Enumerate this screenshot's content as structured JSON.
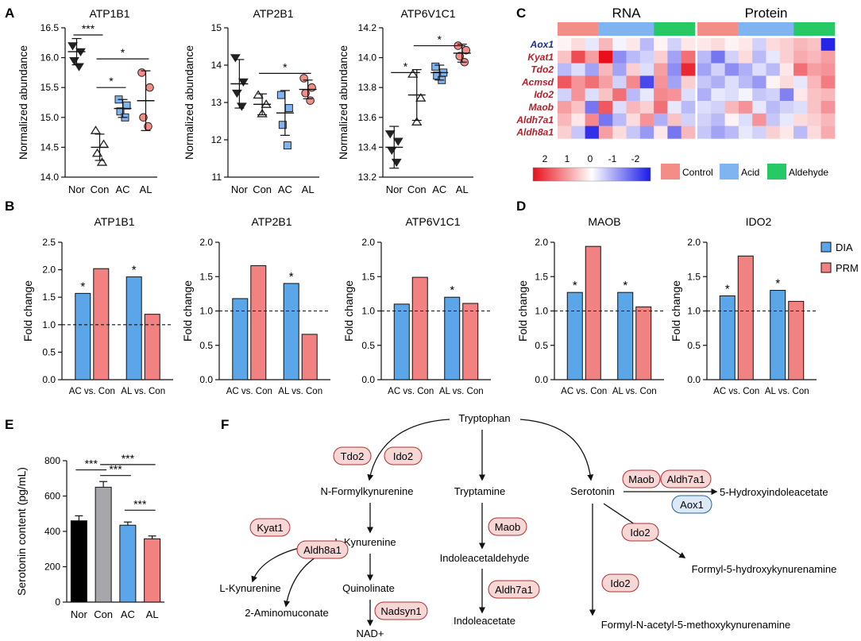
{
  "panel_letters": [
    "A",
    "B",
    "C",
    "D",
    "E",
    "F"
  ],
  "colors": {
    "control": "#f28e86",
    "acid": "#7fb4f0",
    "aldehyde": "#27c964",
    "dia": "#5aa6e8",
    "prm": "#f28181",
    "nor_bar": "#000000",
    "con_bar": "#a6a6ab",
    "enzyme_fill": "#f7d6d6",
    "enzyme_stroke": "#b03030",
    "aox_fill": "#dce9f7",
    "aox_stroke": "#2b5fa0",
    "heat_high": "#e8101a",
    "heat_low": "#1a1ae8"
  },
  "chart_data": [
    {
      "id": "A1",
      "type": "scatter",
      "title": "ATP1B1",
      "ylabel": "Normalized abundance",
      "ylim": [
        14.0,
        16.5
      ],
      "yticks": [
        "14.0",
        "14.5",
        "15.0",
        "15.5",
        "16.0",
        "16.5"
      ],
      "categories": [
        "Nor",
        "Con",
        "AC",
        "AL"
      ],
      "groups": [
        {
          "name": "Nor",
          "marker": "tri-down",
          "points": [
            16.2,
            16.1,
            15.95,
            15.85
          ],
          "mean": 16.1,
          "sd": 0.22
        },
        {
          "name": "Con",
          "marker": "tri-up",
          "points": [
            14.78,
            14.55,
            14.4,
            14.25
          ],
          "mean": 14.5,
          "sd": 0.22
        },
        {
          "name": "AC",
          "marker": "square",
          "points": [
            15.3,
            15.2,
            15.1,
            15.0
          ],
          "mean": 15.15,
          "sd": 0.15
        },
        {
          "name": "AL",
          "marker": "circle",
          "points": [
            15.75,
            15.5,
            15.0,
            14.85
          ],
          "mean": 15.28,
          "sd": 0.5
        }
      ],
      "significance": [
        {
          "from": 0,
          "to": 1,
          "y": 16.38,
          "label": "***"
        },
        {
          "from": 1,
          "to": 2,
          "y": 15.5,
          "label": "*"
        },
        {
          "from": 1,
          "to": 3,
          "y": 15.98,
          "label": "*"
        }
      ]
    },
    {
      "id": "A2",
      "type": "scatter",
      "title": "ATP2B1",
      "ylabel": "Normalized abundance",
      "ylim": [
        11,
        15
      ],
      "yticks": [
        "11",
        "12",
        "13",
        "14",
        "15"
      ],
      "categories": [
        "Nor",
        "Con",
        "AC",
        "AL"
      ],
      "groups": [
        {
          "name": "Nor",
          "marker": "tri-down",
          "points": [
            14.2,
            13.55,
            13.25,
            12.9
          ],
          "mean": 13.5,
          "sd": 0.65
        },
        {
          "name": "Con",
          "marker": "tri-up",
          "points": [
            13.2,
            12.95,
            12.7
          ],
          "mean": 12.95,
          "sd": 0.28
        },
        {
          "name": "AC",
          "marker": "square",
          "points": [
            13.2,
            12.85,
            12.4,
            11.85
          ],
          "mean": 12.72,
          "sd": 0.6
        },
        {
          "name": "AL",
          "marker": "circle",
          "points": [
            13.65,
            13.4,
            13.25,
            13.05
          ],
          "mean": 13.35,
          "sd": 0.25
        }
      ],
      "significance": [
        {
          "from": 1,
          "to": 3,
          "y": 13.78,
          "label": "*"
        }
      ]
    },
    {
      "id": "A3",
      "type": "scatter",
      "title": "ATP6V1C1",
      "ylabel": "Normalized abundance",
      "ylim": [
        13.2,
        14.2
      ],
      "yticks": [
        "13.2",
        "13.4",
        "13.6",
        "13.8",
        "14.0",
        "14.2"
      ],
      "categories": [
        "Nor",
        "Con",
        "AC",
        "AL"
      ],
      "groups": [
        {
          "name": "Nor",
          "marker": "tri-down",
          "points": [
            13.49,
            13.44,
            13.38,
            13.3
          ],
          "mean": 13.4,
          "sd": 0.14
        },
        {
          "name": "Con",
          "marker": "tri-up",
          "points": [
            13.89,
            13.73,
            13.57
          ],
          "mean": 13.75,
          "sd": 0.17
        },
        {
          "name": "AC",
          "marker": "square",
          "points": [
            13.94,
            13.9,
            13.88,
            13.85
          ],
          "mean": 13.9,
          "sd": 0.05
        },
        {
          "name": "AL",
          "marker": "circle",
          "points": [
            14.08,
            14.05,
            14.01,
            13.97
          ],
          "mean": 14.03,
          "sd": 0.06
        }
      ],
      "significance": [
        {
          "from": 0,
          "to": 1,
          "y": 13.9,
          "label": "*"
        },
        {
          "from": 1,
          "to": 3,
          "y": 14.08,
          "label": "*"
        }
      ]
    },
    {
      "id": "B1",
      "type": "bar",
      "title": "ATP1B1",
      "ylabel": "Fold change",
      "ylim": [
        0,
        2.5
      ],
      "yticks": [
        "0.0",
        "0.5",
        "1.0",
        "1.5",
        "2.0",
        "2.5"
      ],
      "categories": [
        "AC vs. Con",
        "AL vs. Con"
      ],
      "series": [
        {
          "name": "DIA",
          "values": [
            1.57,
            1.87
          ]
        },
        {
          "name": "PRM",
          "values": [
            2.02,
            1.19
          ]
        }
      ],
      "stars": [
        "*",
        "*"
      ],
      "reference": 1.0
    },
    {
      "id": "B2",
      "type": "bar",
      "title": "ATP2B1",
      "ylabel": "Fold change",
      "ylim": [
        0,
        2.0
      ],
      "yticks": [
        "0.0",
        "0.5",
        "1.0",
        "1.5",
        "2.0"
      ],
      "categories": [
        "AC vs. Con",
        "AL vs. Con"
      ],
      "series": [
        {
          "name": "DIA",
          "values": [
            1.18,
            1.4
          ]
        },
        {
          "name": "PRM",
          "values": [
            1.66,
            0.66
          ]
        }
      ],
      "stars": [
        "",
        "*"
      ],
      "reference": 1.0
    },
    {
      "id": "B3",
      "type": "bar",
      "title": "ATP6V1C1",
      "ylabel": "Fold change",
      "ylim": [
        0,
        2.0
      ],
      "yticks": [
        "0.0",
        "0.5",
        "1.0",
        "1.5",
        "2.0"
      ],
      "categories": [
        "AC vs. Con",
        "AL vs. Con"
      ],
      "series": [
        {
          "name": "DIA",
          "values": [
            1.1,
            1.2
          ]
        },
        {
          "name": "PRM",
          "values": [
            1.49,
            1.11
          ]
        }
      ],
      "stars": [
        "",
        "*"
      ],
      "reference": 1.0
    },
    {
      "id": "D1",
      "type": "bar",
      "title": "MAOB",
      "ylabel": "Fold change",
      "ylim": [
        0,
        2.0
      ],
      "yticks": [
        "0.0",
        "0.5",
        "1.0",
        "1.5",
        "2.0"
      ],
      "categories": [
        "AC vs. Con",
        "AL vs. Con"
      ],
      "series": [
        {
          "name": "DIA",
          "values": [
            1.27,
            1.27
          ]
        },
        {
          "name": "PRM",
          "values": [
            1.94,
            1.06
          ]
        }
      ],
      "stars": [
        "*",
        "*"
      ],
      "reference": 1.0
    },
    {
      "id": "D2",
      "type": "bar",
      "title": "IDO2",
      "ylabel": "Fold change",
      "ylim": [
        0,
        2.0
      ],
      "yticks": [
        "0.0",
        "0.5",
        "1.0",
        "1.5",
        "2.0"
      ],
      "categories": [
        "AC vs. Con",
        "AL vs. Con"
      ],
      "series": [
        {
          "name": "DIA",
          "values": [
            1.22,
            1.3
          ]
        },
        {
          "name": "PRM",
          "values": [
            1.8,
            1.14
          ]
        }
      ],
      "stars": [
        "*",
        "*"
      ],
      "reference": 1.0,
      "legend": [
        "DIA",
        "PRM"
      ]
    },
    {
      "id": "E",
      "type": "bar",
      "title": "",
      "ylabel": "Serotonin content (pg/mL)",
      "ylim": [
        0,
        800
      ],
      "yticks": [
        "0",
        "200",
        "400",
        "600",
        "800"
      ],
      "categories": [
        "Nor",
        "Con",
        "AC",
        "AL"
      ],
      "values": [
        460,
        650,
        435,
        358
      ],
      "errors": [
        28,
        32,
        18,
        16
      ],
      "significance": [
        {
          "from": 0,
          "to": 1,
          "y": 748,
          "label": "***"
        },
        {
          "from": 1,
          "to": 2,
          "y": 716,
          "label": "***"
        },
        {
          "from": 1,
          "to": 3,
          "y": 778,
          "label": "***"
        },
        {
          "from": 2,
          "to": 3,
          "y": 520,
          "label": "***"
        }
      ]
    },
    {
      "id": "C",
      "type": "heatmap",
      "titles": [
        "RNA",
        "Protein"
      ],
      "genes": [
        "Aox1",
        "Kyat1",
        "Tdo2",
        "Acmsd",
        "Ido2",
        "Maob",
        "Aldh7a1",
        "Aldh8a1"
      ],
      "groups": [
        {
          "name": "Control",
          "count": 3
        },
        {
          "name": "Acid",
          "count": 4
        },
        {
          "name": "Aldehyde",
          "count": 3
        }
      ],
      "scale_ticks": [
        "2",
        "1",
        "0",
        "-1",
        "-2"
      ],
      "rna": [
        [
          0.1,
          0.3,
          -0.2,
          0.6,
          -0.1,
          0.2,
          -0.6,
          0.1,
          -0.4,
          0.2
        ],
        [
          0.5,
          1.5,
          0.8,
          2.0,
          -1.0,
          -0.6,
          -0.4,
          0.4,
          -0.8,
          1.2
        ],
        [
          -0.6,
          -0.3,
          -0.8,
          0.6,
          -0.8,
          0.4,
          -0.3,
          0.8,
          -1.0,
          1.8
        ],
        [
          1.4,
          0.9,
          1.2,
          0.8,
          -0.4,
          1.0,
          -1.6,
          0.9,
          -0.8,
          0.4
        ],
        [
          -0.4,
          0.9,
          -0.3,
          0.5,
          1.2,
          -0.6,
          -0.2,
          1.0,
          0.9,
          -0.3
        ],
        [
          0.8,
          0.5,
          -1.2,
          1.4,
          -0.3,
          0.6,
          0.4,
          1.2,
          -0.2,
          -0.6
        ],
        [
          0.6,
          0.2,
          1.0,
          -1.2,
          -0.6,
          0.3,
          0.9,
          -0.7,
          0.5,
          -0.4
        ],
        [
          0.4,
          -0.5,
          -1.8,
          0.8,
          0.3,
          -0.5,
          -0.9,
          0.2,
          -1.2,
          0.6
        ]
      ],
      "protein": [
        [
          0.2,
          0.3,
          0.1,
          0.2,
          -0.4,
          0.3,
          0.4,
          0.6,
          0.5,
          -1.9
        ],
        [
          -0.6,
          -1.2,
          -0.4,
          0.3,
          -0.6,
          -0.2,
          0.4,
          0.7,
          0.6,
          0.8
        ],
        [
          -0.8,
          -0.4,
          -1.0,
          -0.7,
          -0.3,
          -0.6,
          0.2,
          1.2,
          0.8,
          0.9
        ],
        [
          -0.5,
          -0.7,
          -0.3,
          -0.6,
          -0.9,
          0.1,
          0.3,
          -0.2,
          0.6,
          1.1
        ],
        [
          -0.7,
          -0.2,
          -0.3,
          -0.1,
          -0.5,
          -0.4,
          -1.1,
          0.2,
          0.5,
          0.6
        ],
        [
          -0.3,
          -0.4,
          0.6,
          0.9,
          -0.2,
          -0.6,
          -0.4,
          -0.3,
          0.5,
          0.9
        ],
        [
          -0.4,
          -0.6,
          0.1,
          -0.3,
          0.9,
          -0.5,
          -0.2,
          0.3,
          0.4,
          0.6
        ],
        [
          -0.5,
          -0.8,
          -0.6,
          -0.2,
          -0.4,
          0.4,
          0.2,
          -0.6,
          0.3,
          0.7
        ]
      ]
    }
  ],
  "pathway": {
    "metabolites": {
      "tryptophan": "Tryptophan",
      "n_formylkynurenine": "N-Formylkynurenine",
      "tryptamine": "Tryptamine",
      "serotonin": "Serotonin",
      "hiaa": "5-Hydroxyindoleacetate",
      "l_kynurenine_main": "L-Kynurenine",
      "l_kynurenine_side": "L-Kynurenine",
      "aminomuconate": "2-Aminomuconate",
      "quinolinate": "Quinolinate",
      "nad": "NAD+",
      "indoleacetaldehyde": "Indoleacetaldehyde",
      "indoleacetate": "Indoleacetate",
      "formyl_hydroxykynurenamine": "Formyl-5-hydroxykynurenamine",
      "formyl_acetyl_methoxykynurenamine": "Formyl-N-acetyl-5-methoxykynurenamine"
    },
    "enzymes": {
      "tdo2": "Tdo2",
      "ido2_a": "Ido2",
      "kyat1": "Kyat1",
      "aldh8a1": "Aldh8a1",
      "nadsyn1": "Nadsyn1",
      "maob_a": "Maob",
      "aldh7a1_a": "Aldh7a1",
      "maob_b": "Maob",
      "aldh7a1_b": "Aldh7a1",
      "aox1": "Aox1",
      "ido2_b": "Ido2",
      "ido2_c": "Ido2"
    }
  }
}
